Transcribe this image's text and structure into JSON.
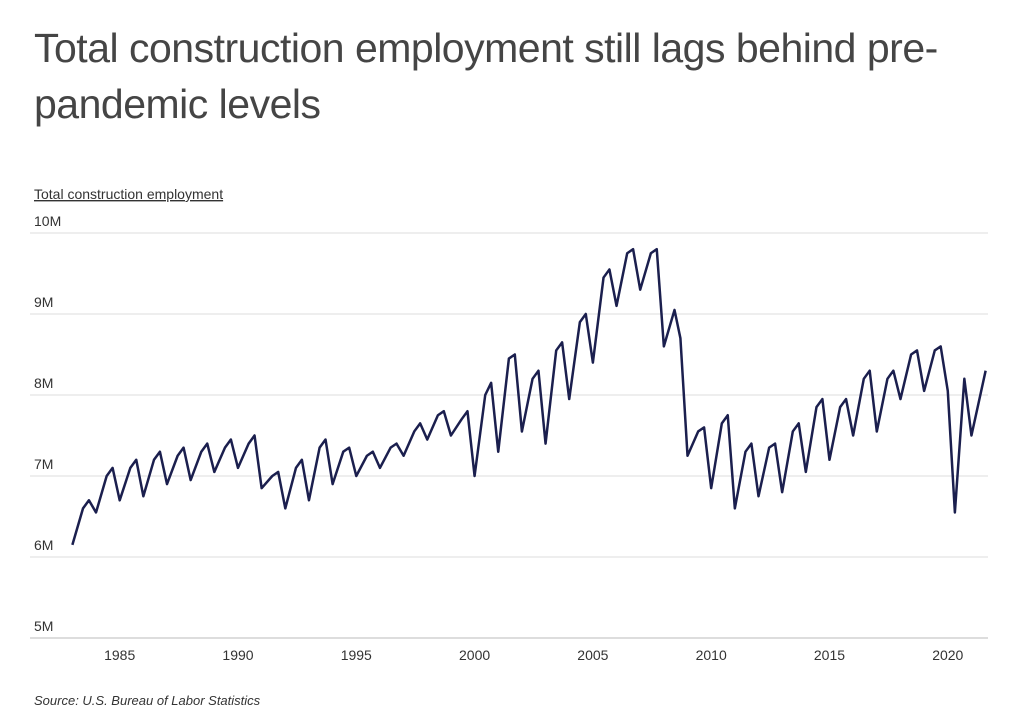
{
  "chart_data": {
    "type": "line",
    "title": "Total construction employment still lags behind pre-pandemic levels",
    "y_label": "Total construction employment",
    "source": "Source:  U.S. Bureau of Labor Statistics",
    "x": [
      1983.0,
      1983.45,
      1983.7,
      1984.0,
      1984.45,
      1984.7,
      1985.0,
      1985.45,
      1985.7,
      1986.0,
      1986.45,
      1986.7,
      1987.0,
      1987.45,
      1987.7,
      1988.0,
      1988.45,
      1988.7,
      1989.0,
      1989.45,
      1989.7,
      1990.0,
      1990.45,
      1990.7,
      1991.0,
      1991.45,
      1991.7,
      1992.0,
      1992.45,
      1992.7,
      1993.0,
      1993.45,
      1993.7,
      1994.0,
      1994.45,
      1994.7,
      1995.0,
      1995.45,
      1995.7,
      1996.0,
      1996.45,
      1996.7,
      1997.0,
      1997.45,
      1997.7,
      1998.0,
      1998.45,
      1998.7,
      1999.0,
      1999.45,
      1999.7,
      2000.0,
      2000.45,
      2000.7,
      2001.0,
      2001.45,
      2001.7,
      2002.0,
      2002.45,
      2002.7,
      2003.0,
      2003.45,
      2003.7,
      2004.0,
      2004.45,
      2004.7,
      2005.0,
      2005.45,
      2005.7,
      2006.0,
      2006.45,
      2006.7,
      2007.0,
      2007.45,
      2007.7,
      2008.0,
      2008.45,
      2008.7,
      2009.0,
      2009.45,
      2009.7,
      2010.0,
      2010.45,
      2010.7,
      2011.0,
      2011.45,
      2011.7,
      2012.0,
      2012.45,
      2012.7,
      2013.0,
      2013.45,
      2013.7,
      2014.0,
      2014.45,
      2014.7,
      2015.0,
      2015.45,
      2015.7,
      2016.0,
      2016.45,
      2016.7,
      2017.0,
      2017.45,
      2017.7,
      2018.0,
      2018.45,
      2018.7,
      2019.0,
      2019.45,
      2019.7,
      2020.0,
      2020.3,
      2020.7,
      2021.0,
      2021.3,
      2021.6
    ],
    "values": [
      6.15,
      6.6,
      6.7,
      6.55,
      7.0,
      7.1,
      6.7,
      7.1,
      7.2,
      6.75,
      7.2,
      7.3,
      6.9,
      7.25,
      7.35,
      6.95,
      7.3,
      7.4,
      7.05,
      7.35,
      7.45,
      7.1,
      7.4,
      7.5,
      6.85,
      7.0,
      7.05,
      6.6,
      7.1,
      7.2,
      6.7,
      7.35,
      7.45,
      6.9,
      7.3,
      7.35,
      7.0,
      7.25,
      7.3,
      7.1,
      7.35,
      7.4,
      7.25,
      7.55,
      7.65,
      7.45,
      7.75,
      7.8,
      7.5,
      7.7,
      7.8,
      7.0,
      8.0,
      8.15,
      7.3,
      8.45,
      8.5,
      7.55,
      8.2,
      8.3,
      7.4,
      8.55,
      8.65,
      7.95,
      8.9,
      9.0,
      8.4,
      9.45,
      9.55,
      9.1,
      9.75,
      9.8,
      9.3,
      9.75,
      9.8,
      8.6,
      9.05,
      8.7,
      7.25,
      7.55,
      7.6,
      6.85,
      7.65,
      7.75,
      6.6,
      7.3,
      7.4,
      6.75,
      7.35,
      7.4,
      6.8,
      7.55,
      7.65,
      7.05,
      7.85,
      7.95,
      7.2,
      7.85,
      7.95,
      7.5,
      8.2,
      8.3,
      7.55,
      8.2,
      8.3,
      7.95,
      8.5,
      8.55,
      8.05,
      8.55,
      8.6,
      8.05,
      6.55,
      8.2,
      7.5,
      7.9,
      8.3
    ],
    "color": "#1b1f4e",
    "xlim": [
      1982.9,
      2021.7
    ],
    "xticks": [
      1985,
      1990,
      1995,
      2000,
      2005,
      2010,
      2015,
      2020
    ],
    "ylim": [
      5,
      10
    ],
    "yticks": [
      {
        "value": 5,
        "label": "5M"
      },
      {
        "value": 6,
        "label": "6M"
      },
      {
        "value": 7,
        "label": "7M"
      },
      {
        "value": 8,
        "label": "8M"
      },
      {
        "value": 9,
        "label": "9M"
      },
      {
        "value": 10,
        "label": "10M"
      }
    ],
    "grid": true
  }
}
